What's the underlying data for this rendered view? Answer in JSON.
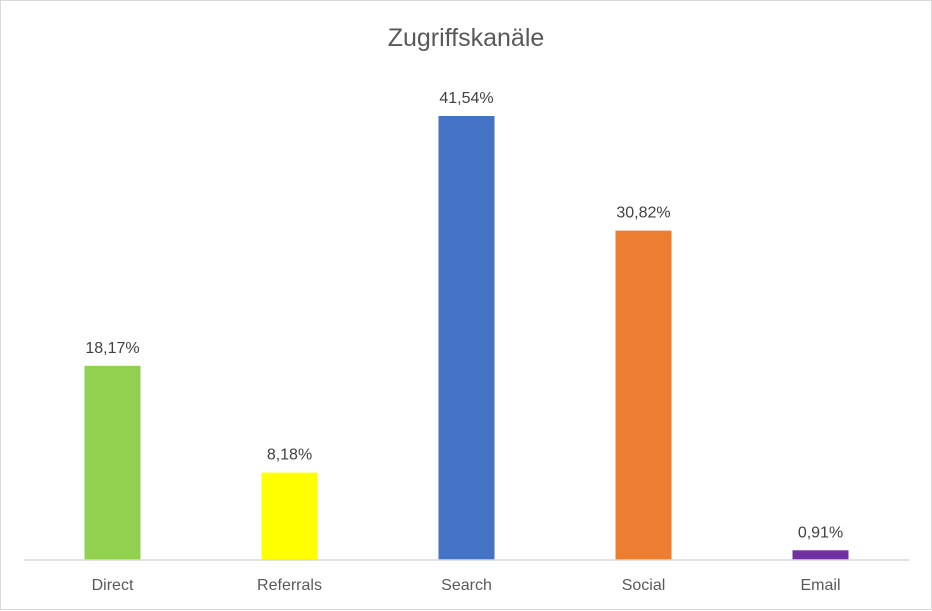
{
  "chart_data": {
    "type": "bar",
    "title": "Zugriffskanäle",
    "categories": [
      "Direct",
      "Referrals",
      "Search",
      "Social",
      "Email"
    ],
    "values": [
      18.17,
      8.18,
      41.54,
      30.82,
      0.91
    ],
    "value_labels": [
      "18,17%",
      "8,18%",
      "41,54%",
      "30,82%",
      "0,91%"
    ],
    "colors": [
      "#92d050",
      "#ffff00",
      "#4472c4",
      "#ed7d31",
      "#7030a0"
    ],
    "xlabel": "",
    "ylabel": "",
    "ylim": [
      0,
      45
    ],
    "grid": false,
    "legend": "none"
  }
}
